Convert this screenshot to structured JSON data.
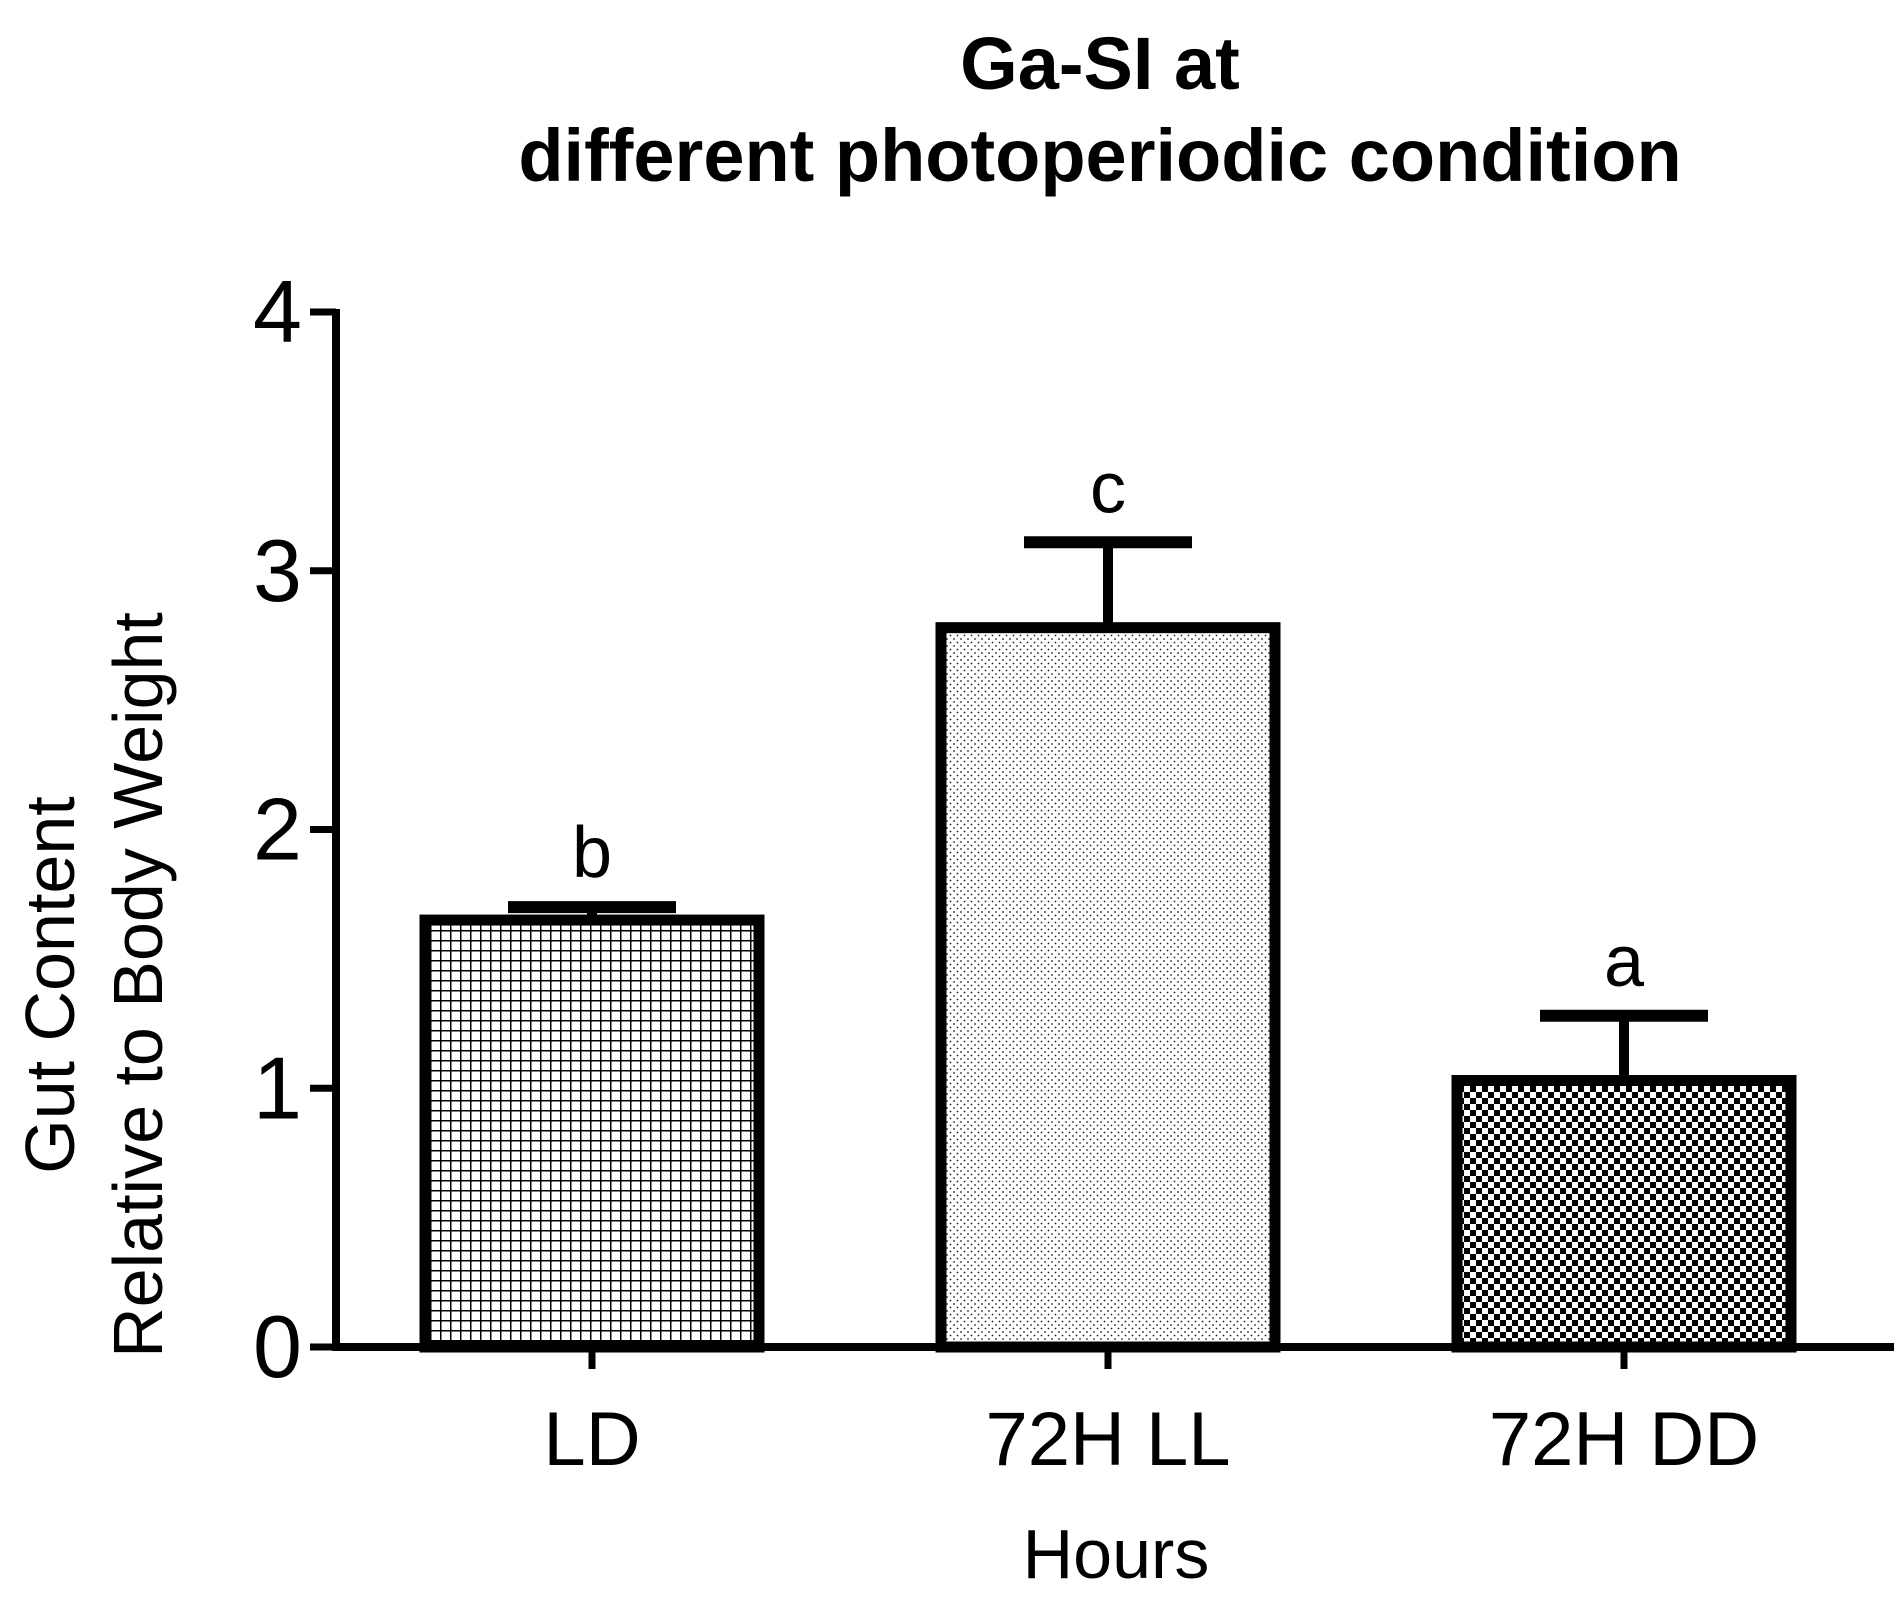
{
  "chart_data": {
    "type": "bar",
    "title_lines": [
      "Ga-SI at",
      "different photoperiodic condition"
    ],
    "xlabel": "Hours",
    "ylabel_lines": [
      "Gut Content",
      "Relative to Body Weight"
    ],
    "categories": [
      "LD",
      "72H LL",
      "72H DD"
    ],
    "values": [
      1.65,
      2.78,
      1.03
    ],
    "error_upper": [
      0.05,
      0.33,
      0.25
    ],
    "significance_letters": [
      "b",
      "c",
      "a"
    ],
    "patterns": [
      "grid",
      "dots",
      "checker"
    ],
    "ylim": [
      0,
      4
    ],
    "yticks": [
      "0",
      "1",
      "2",
      "3",
      "4"
    ],
    "grid": false,
    "legend": "none",
    "colors": {
      "bar_stroke": "#000000",
      "background": "#ffffff"
    }
  }
}
